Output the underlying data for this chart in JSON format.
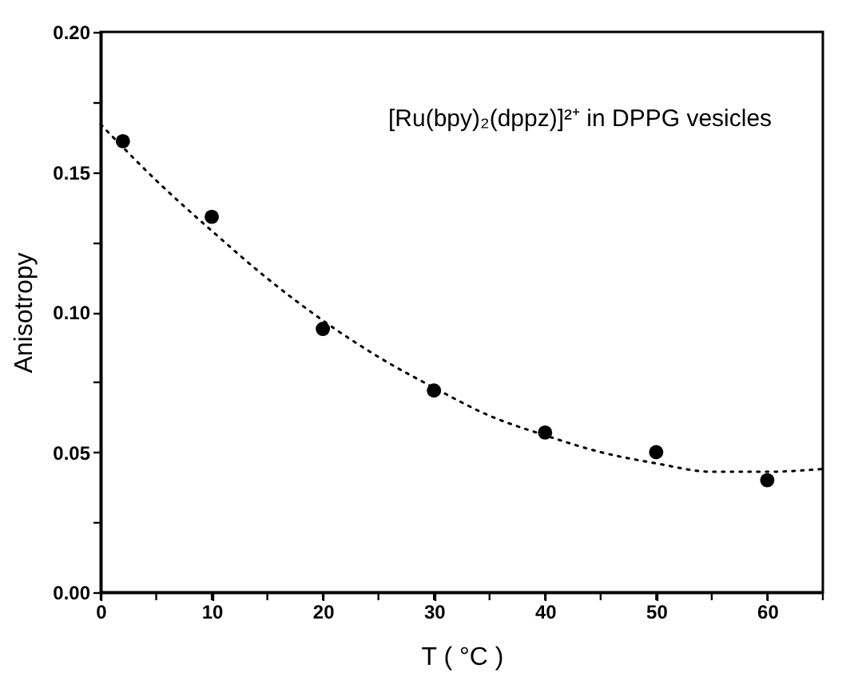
{
  "chart_data": {
    "type": "scatter",
    "xlabel": "T ( °C )",
    "ylabel": "Anisotropy",
    "annotations": [
      "[Ru(bpy)₂(dppz)]²⁺ in DPPG vesicles"
    ],
    "x": [
      2,
      10,
      20,
      30,
      40,
      50,
      60
    ],
    "xlim": [
      0,
      65
    ],
    "xticks": [
      0,
      {
        "value": 5,
        "label": null
      },
      10,
      {
        "value": 15,
        "label": null
      },
      20,
      {
        "value": 25,
        "label": null
      },
      30,
      {
        "value": 35,
        "label": null
      },
      40,
      {
        "value": 45,
        "label": null
      },
      50,
      {
        "value": 55,
        "label": null
      },
      60,
      {
        "value": 65,
        "label": null
      }
    ],
    "ylim": [
      0,
      0.2
    ],
    "yticks": [
      {
        "value": 0,
        "label": "0.00"
      },
      {
        "value": 0.025,
        "label": null
      },
      {
        "value": 0.05,
        "label": "0.05"
      },
      {
        "value": 0.075,
        "label": null
      },
      {
        "value": 0.1,
        "label": "0.10"
      },
      {
        "value": 0.125,
        "label": null
      },
      {
        "value": 0.15,
        "label": "0.15"
      },
      {
        "value": 0.175,
        "label": null
      },
      {
        "value": 0.2,
        "label": "0.20"
      }
    ],
    "series": [
      {
        "type": "scatter",
        "color": "#000000",
        "marker": "circle",
        "values": [
          0.161,
          0.134,
          0.094,
          0.072,
          0.057,
          0.05,
          0.04
        ]
      },
      {
        "type": "line",
        "color": "#000000",
        "line_style": "dotted",
        "marker": "none",
        "x": [
          0,
          5,
          10,
          15,
          20,
          25,
          30,
          35,
          40,
          45,
          50,
          55,
          60,
          65
        ],
        "values": [
          0.167,
          0.147,
          0.129,
          0.112,
          0.097,
          0.084,
          0.073,
          0.063,
          0.056,
          0.05,
          0.046,
          0.043,
          0.043,
          0.044
        ]
      }
    ]
  }
}
